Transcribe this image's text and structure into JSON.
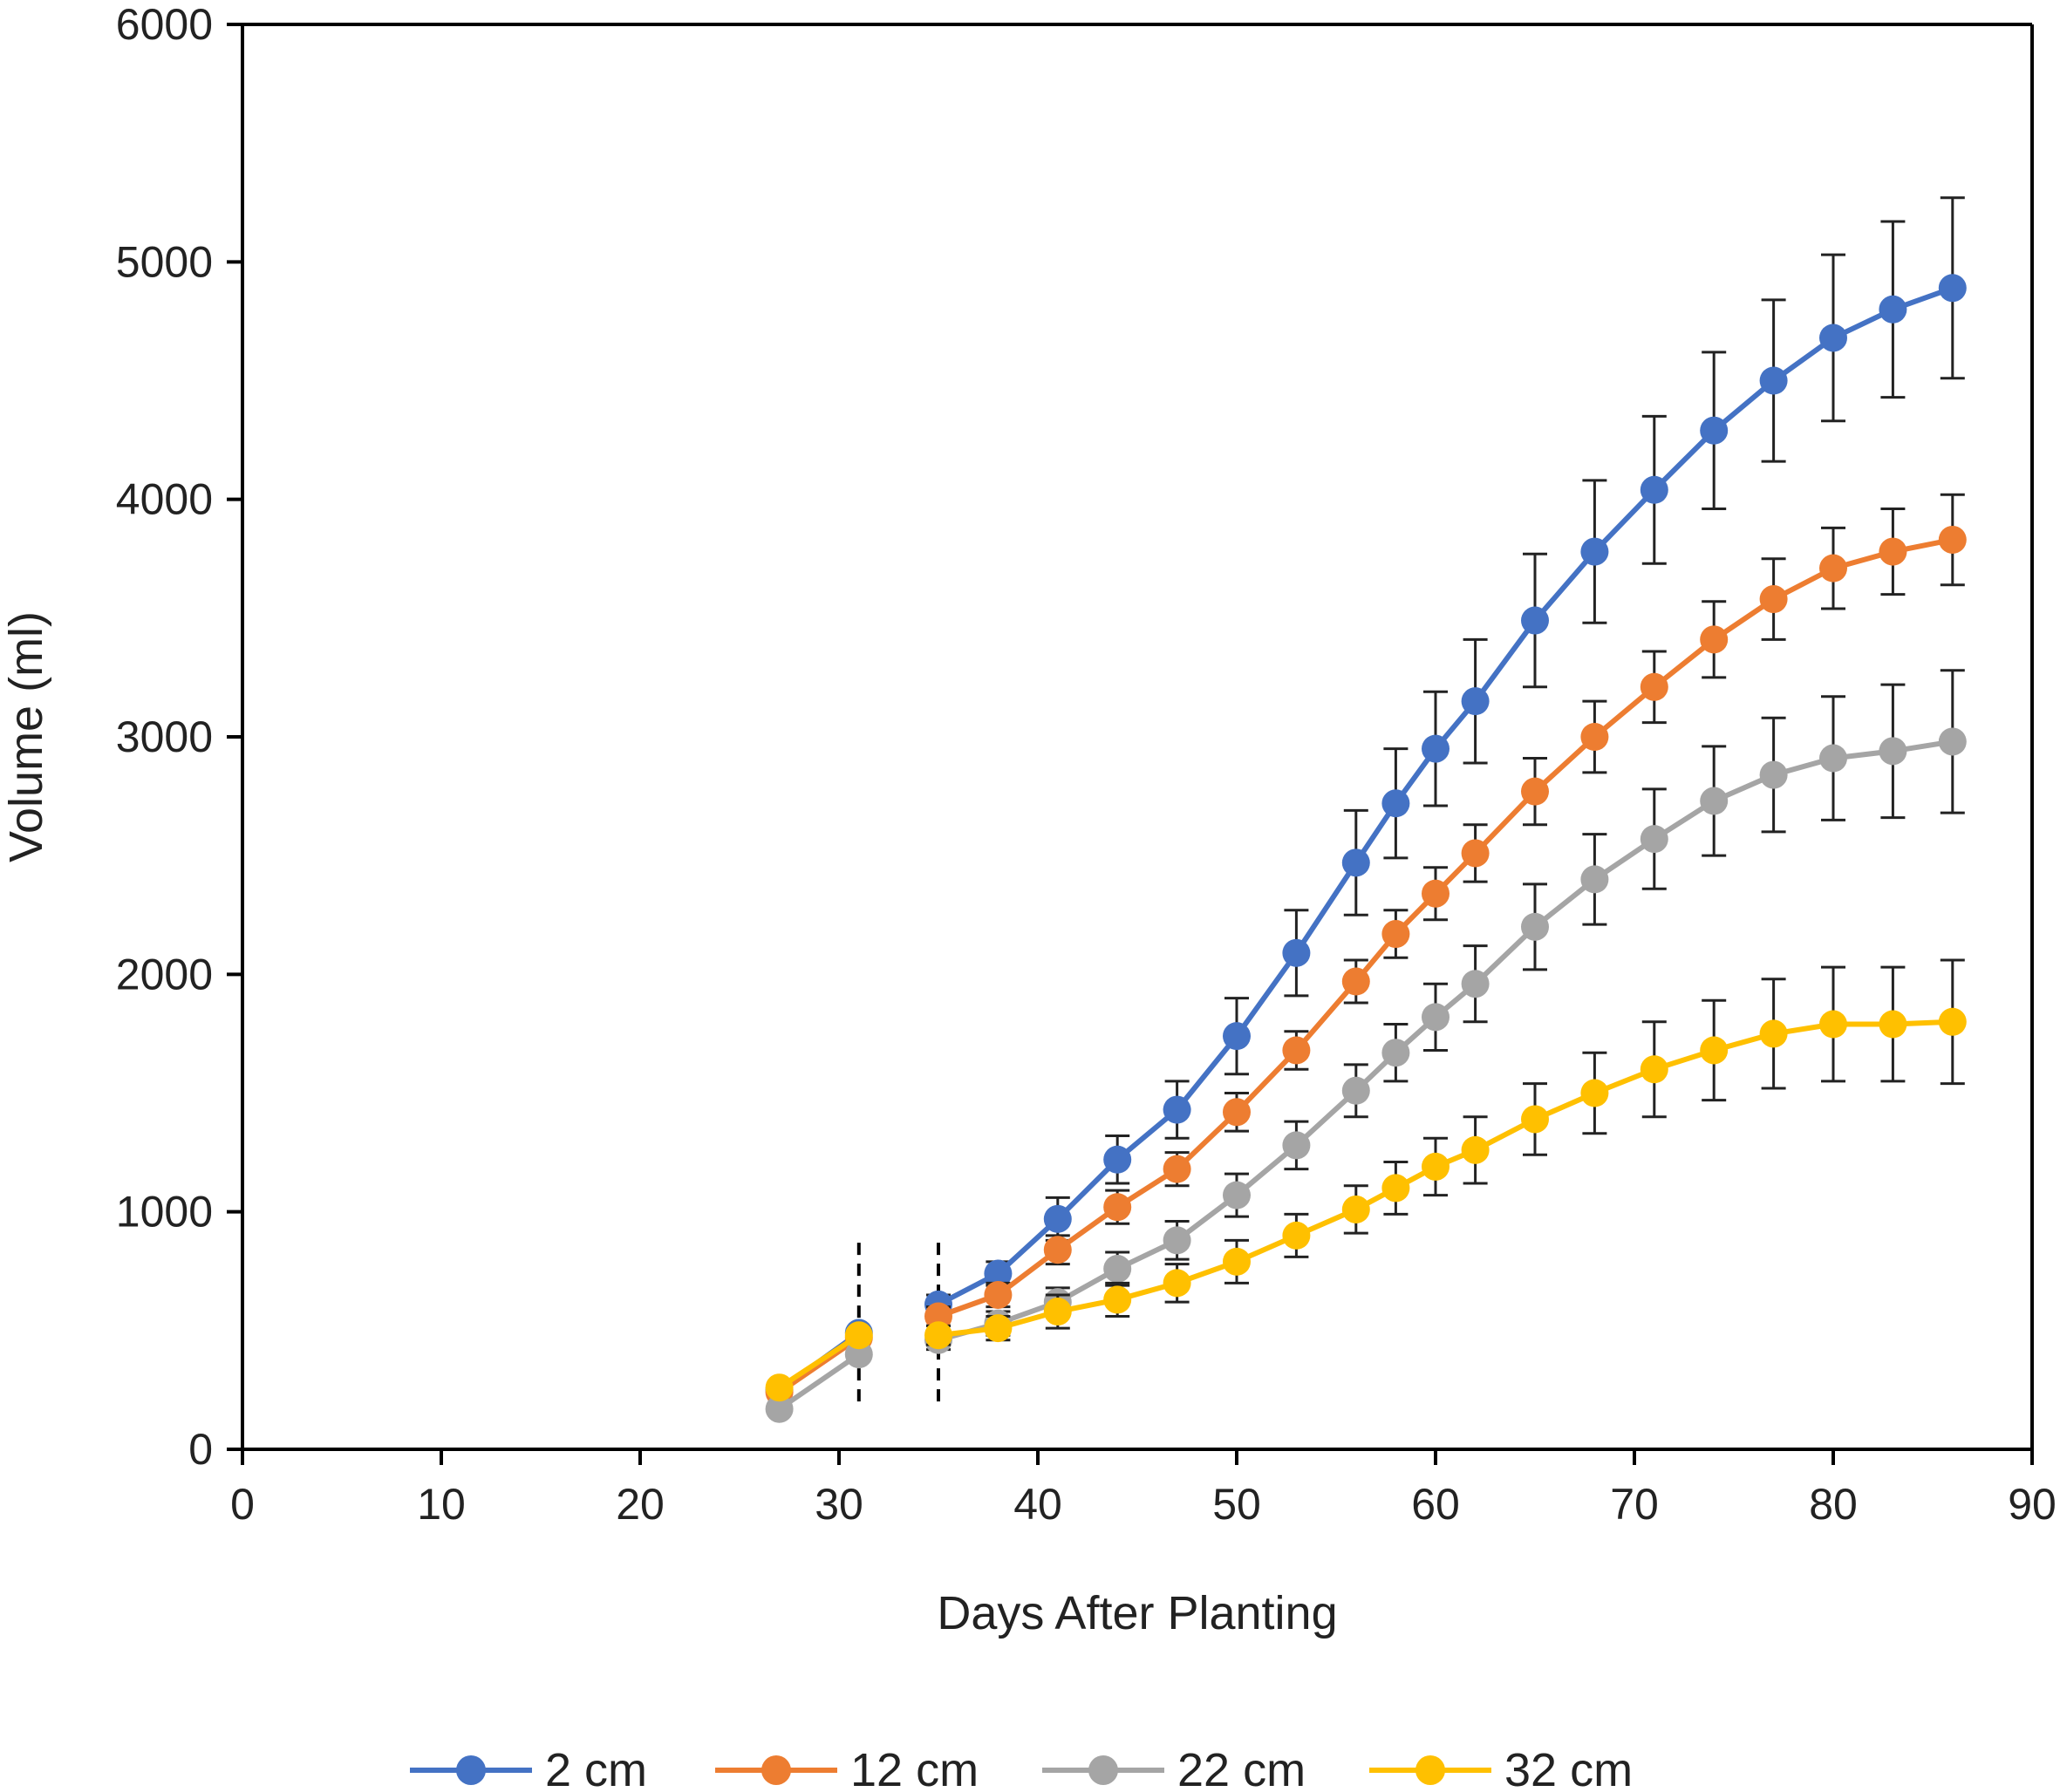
{
  "chart_data": {
    "type": "line",
    "title": "",
    "xlabel": "Days After Planting",
    "ylabel": "Volume (ml)",
    "xlim": [
      0,
      90
    ],
    "ylim": [
      0,
      6000
    ],
    "xticks": [
      0,
      10,
      20,
      30,
      40,
      50,
      60,
      70,
      80,
      90
    ],
    "yticks": [
      0,
      1000,
      2000,
      3000,
      4000,
      5000,
      6000
    ],
    "grid": false,
    "legend_position": "bottom",
    "break_markers": [
      31,
      35
    ],
    "series": [
      {
        "name": "2 cm",
        "color": "#4472C4",
        "segments": [
          {
            "x": [
              27,
              31
            ],
            "y": [
              250,
              490
            ],
            "err": [
              0,
              0
            ]
          },
          {
            "x": [
              35,
              38,
              41,
              44,
              47,
              50,
              53,
              56,
              58,
              60,
              62,
              65,
              68,
              71,
              74,
              77,
              80,
              83,
              86
            ],
            "y": [
              610,
              740,
              970,
              1220,
              1430,
              1740,
              2090,
              2470,
              2720,
              2950,
              3150,
              3490,
              3780,
              4040,
              4290,
              4500,
              4680,
              4800,
              4890
            ],
            "err": [
              40,
              50,
              90,
              100,
              120,
              160,
              180,
              220,
              230,
              240,
              260,
              280,
              300,
              310,
              330,
              340,
              350,
              370,
              380
            ]
          }
        ]
      },
      {
        "name": "12 cm",
        "color": "#ED7D31",
        "segments": [
          {
            "x": [
              27,
              31
            ],
            "y": [
              240,
              470
            ],
            "err": [
              0,
              0
            ]
          },
          {
            "x": [
              35,
              38,
              41,
              44,
              47,
              50,
              53,
              56,
              58,
              60,
              62,
              65,
              68,
              71,
              74,
              77,
              80,
              83,
              86
            ],
            "y": [
              560,
              650,
              840,
              1020,
              1180,
              1420,
              1680,
              1970,
              2170,
              2340,
              2510,
              2770,
              3000,
              3210,
              3410,
              3580,
              3710,
              3780,
              3830
            ],
            "err": [
              40,
              50,
              60,
              70,
              70,
              80,
              80,
              90,
              100,
              110,
              120,
              140,
              150,
              150,
              160,
              170,
              170,
              180,
              190
            ]
          }
        ]
      },
      {
        "name": "22 cm",
        "color": "#A5A5A5",
        "segments": [
          {
            "x": [
              27,
              31
            ],
            "y": [
              170,
              400
            ],
            "err": [
              0,
              0
            ]
          },
          {
            "x": [
              35,
              38,
              41,
              44,
              47,
              50,
              53,
              56,
              58,
              60,
              62,
              65,
              68,
              71,
              74,
              77,
              80,
              83,
              86
            ],
            "y": [
              460,
              530,
              620,
              760,
              880,
              1070,
              1280,
              1510,
              1670,
              1820,
              1960,
              2200,
              2400,
              2570,
              2730,
              2840,
              2910,
              2940,
              2980
            ],
            "err": [
              40,
              50,
              60,
              70,
              80,
              90,
              100,
              110,
              120,
              140,
              160,
              180,
              190,
              210,
              230,
              240,
              260,
              280,
              300
            ]
          }
        ]
      },
      {
        "name": "32 cm",
        "color": "#FFC000",
        "segments": [
          {
            "x": [
              27,
              31
            ],
            "y": [
              260,
              480
            ],
            "err": [
              0,
              0
            ]
          },
          {
            "x": [
              35,
              38,
              41,
              44,
              47,
              50,
              53,
              56,
              58,
              60,
              62,
              65,
              68,
              71,
              74,
              77,
              80,
              83,
              86
            ],
            "y": [
              480,
              510,
              580,
              630,
              700,
              790,
              900,
              1010,
              1100,
              1190,
              1260,
              1390,
              1500,
              1600,
              1680,
              1750,
              1790,
              1790,
              1800
            ],
            "err": [
              40,
              50,
              70,
              70,
              80,
              90,
              90,
              100,
              110,
              120,
              140,
              150,
              170,
              200,
              210,
              230,
              240,
              240,
              260
            ]
          }
        ]
      }
    ]
  }
}
